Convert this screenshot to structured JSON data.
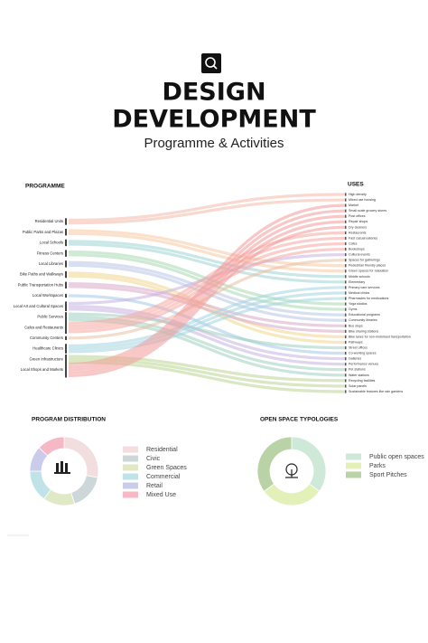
{
  "header": {
    "title": [
      "DESIGN",
      "DEVELOPMENT"
    ],
    "subtitle": "Programme & Activities"
  },
  "flow": {
    "programme_title": "PROGRAMME",
    "uses_title": "USES",
    "programme": [
      {
        "label": "Residential Units",
        "color": "#f2b8a8",
        "links": [
          0,
          1
        ]
      },
      {
        "label": "Public Parks and Plazas",
        "color": "#f7c9a0",
        "links": [
          13,
          14
        ]
      },
      {
        "label": "Local Schools",
        "color": "#9fd3d6",
        "links": [
          15,
          16
        ]
      },
      {
        "label": "Fitness Centers",
        "color": "#a8d8b0",
        "links": [
          20,
          21
        ]
      },
      {
        "label": "Local Libraries",
        "color": "#b7c4e6",
        "links": [
          22,
          23
        ]
      },
      {
        "label": "Bike Paths and Walkways",
        "color": "#f1d58c",
        "links": [
          26,
          27
        ]
      },
      {
        "label": "Public Transportation Hubs",
        "color": "#d9a8c7",
        "links": [
          24,
          25
        ]
      },
      {
        "label": "Local Workspaces",
        "color": "#a6c9e8",
        "links": [
          29
        ]
      },
      {
        "label": "Local Art and Cultural Spaces",
        "color": "#c6b3e0",
        "links": [
          11,
          30,
          31
        ]
      },
      {
        "label": "Public Services",
        "color": "#9ccfc0",
        "links": [
          28,
          32,
          33
        ]
      },
      {
        "label": "Cafes and Restaurants",
        "color": "#f5a7a0",
        "links": [
          7,
          8,
          9,
          10
        ]
      },
      {
        "label": "Community Centers",
        "color": "#e8c0a0",
        "links": [
          12
        ]
      },
      {
        "label": "Healthcare Clinics",
        "color": "#a3d5e0",
        "links": [
          17,
          18,
          19
        ]
      },
      {
        "label": "Green Infrastructure",
        "color": "#b9d48f",
        "links": [
          34,
          35,
          36
        ]
      },
      {
        "label": "Local Shops and Markets",
        "color": "#f29a9a",
        "links": [
          2,
          3,
          4,
          5,
          6
        ]
      }
    ],
    "uses": [
      "High density",
      "Mixed use housing",
      "Market",
      "Small scale grocery stores",
      "Post offices",
      "Repair shops",
      "Dry cleaners",
      "Restaurants",
      "Fast casual eateries",
      "Cafes",
      "Bookshops",
      "Cultural events",
      "Spaces for gatherings",
      "Pedestrian friendly places",
      "Green spaces for relaxation",
      "Middle schools",
      "Elementary",
      "Primary care services",
      "Medical clinics",
      "Pharmacies for medications",
      "Yoga studios",
      "Gyms",
      "Educational programs",
      "Community libraries",
      "Bus stops",
      "Bike sharing stations",
      "Bike lanes for non-motorised transportation",
      "Pathways",
      "Street offices",
      "Co-working spaces",
      "Galleries",
      "Performance venues",
      "Pet stations",
      "Water stations",
      "Recycling facilities",
      "Solar panels",
      "Sustainable features like rain gardens"
    ]
  },
  "chart_data": [
    {
      "type": "pie",
      "title": "PROGRAM DISTRIBUTION",
      "categories": [
        "Residential",
        "Civic",
        "Green Spaces",
        "Commercial",
        "Retail",
        "Mixed Use"
      ],
      "values": [
        28,
        17,
        15,
        15,
        12,
        13
      ],
      "colors": [
        "#f2dede",
        "#cdd7da",
        "#dfe9c6",
        "#bfe3e6",
        "#cbcbea",
        "#f5b8c4"
      ]
    },
    {
      "type": "pie",
      "title": "OPEN SPACE TYPOLOGIES",
      "categories": [
        "Public open spaces",
        "Parks",
        "Sport Pitches"
      ],
      "values": [
        35,
        30,
        35
      ],
      "colors": [
        "#cfe9d8",
        "#e3f0b8",
        "#b9d3a6"
      ]
    }
  ]
}
